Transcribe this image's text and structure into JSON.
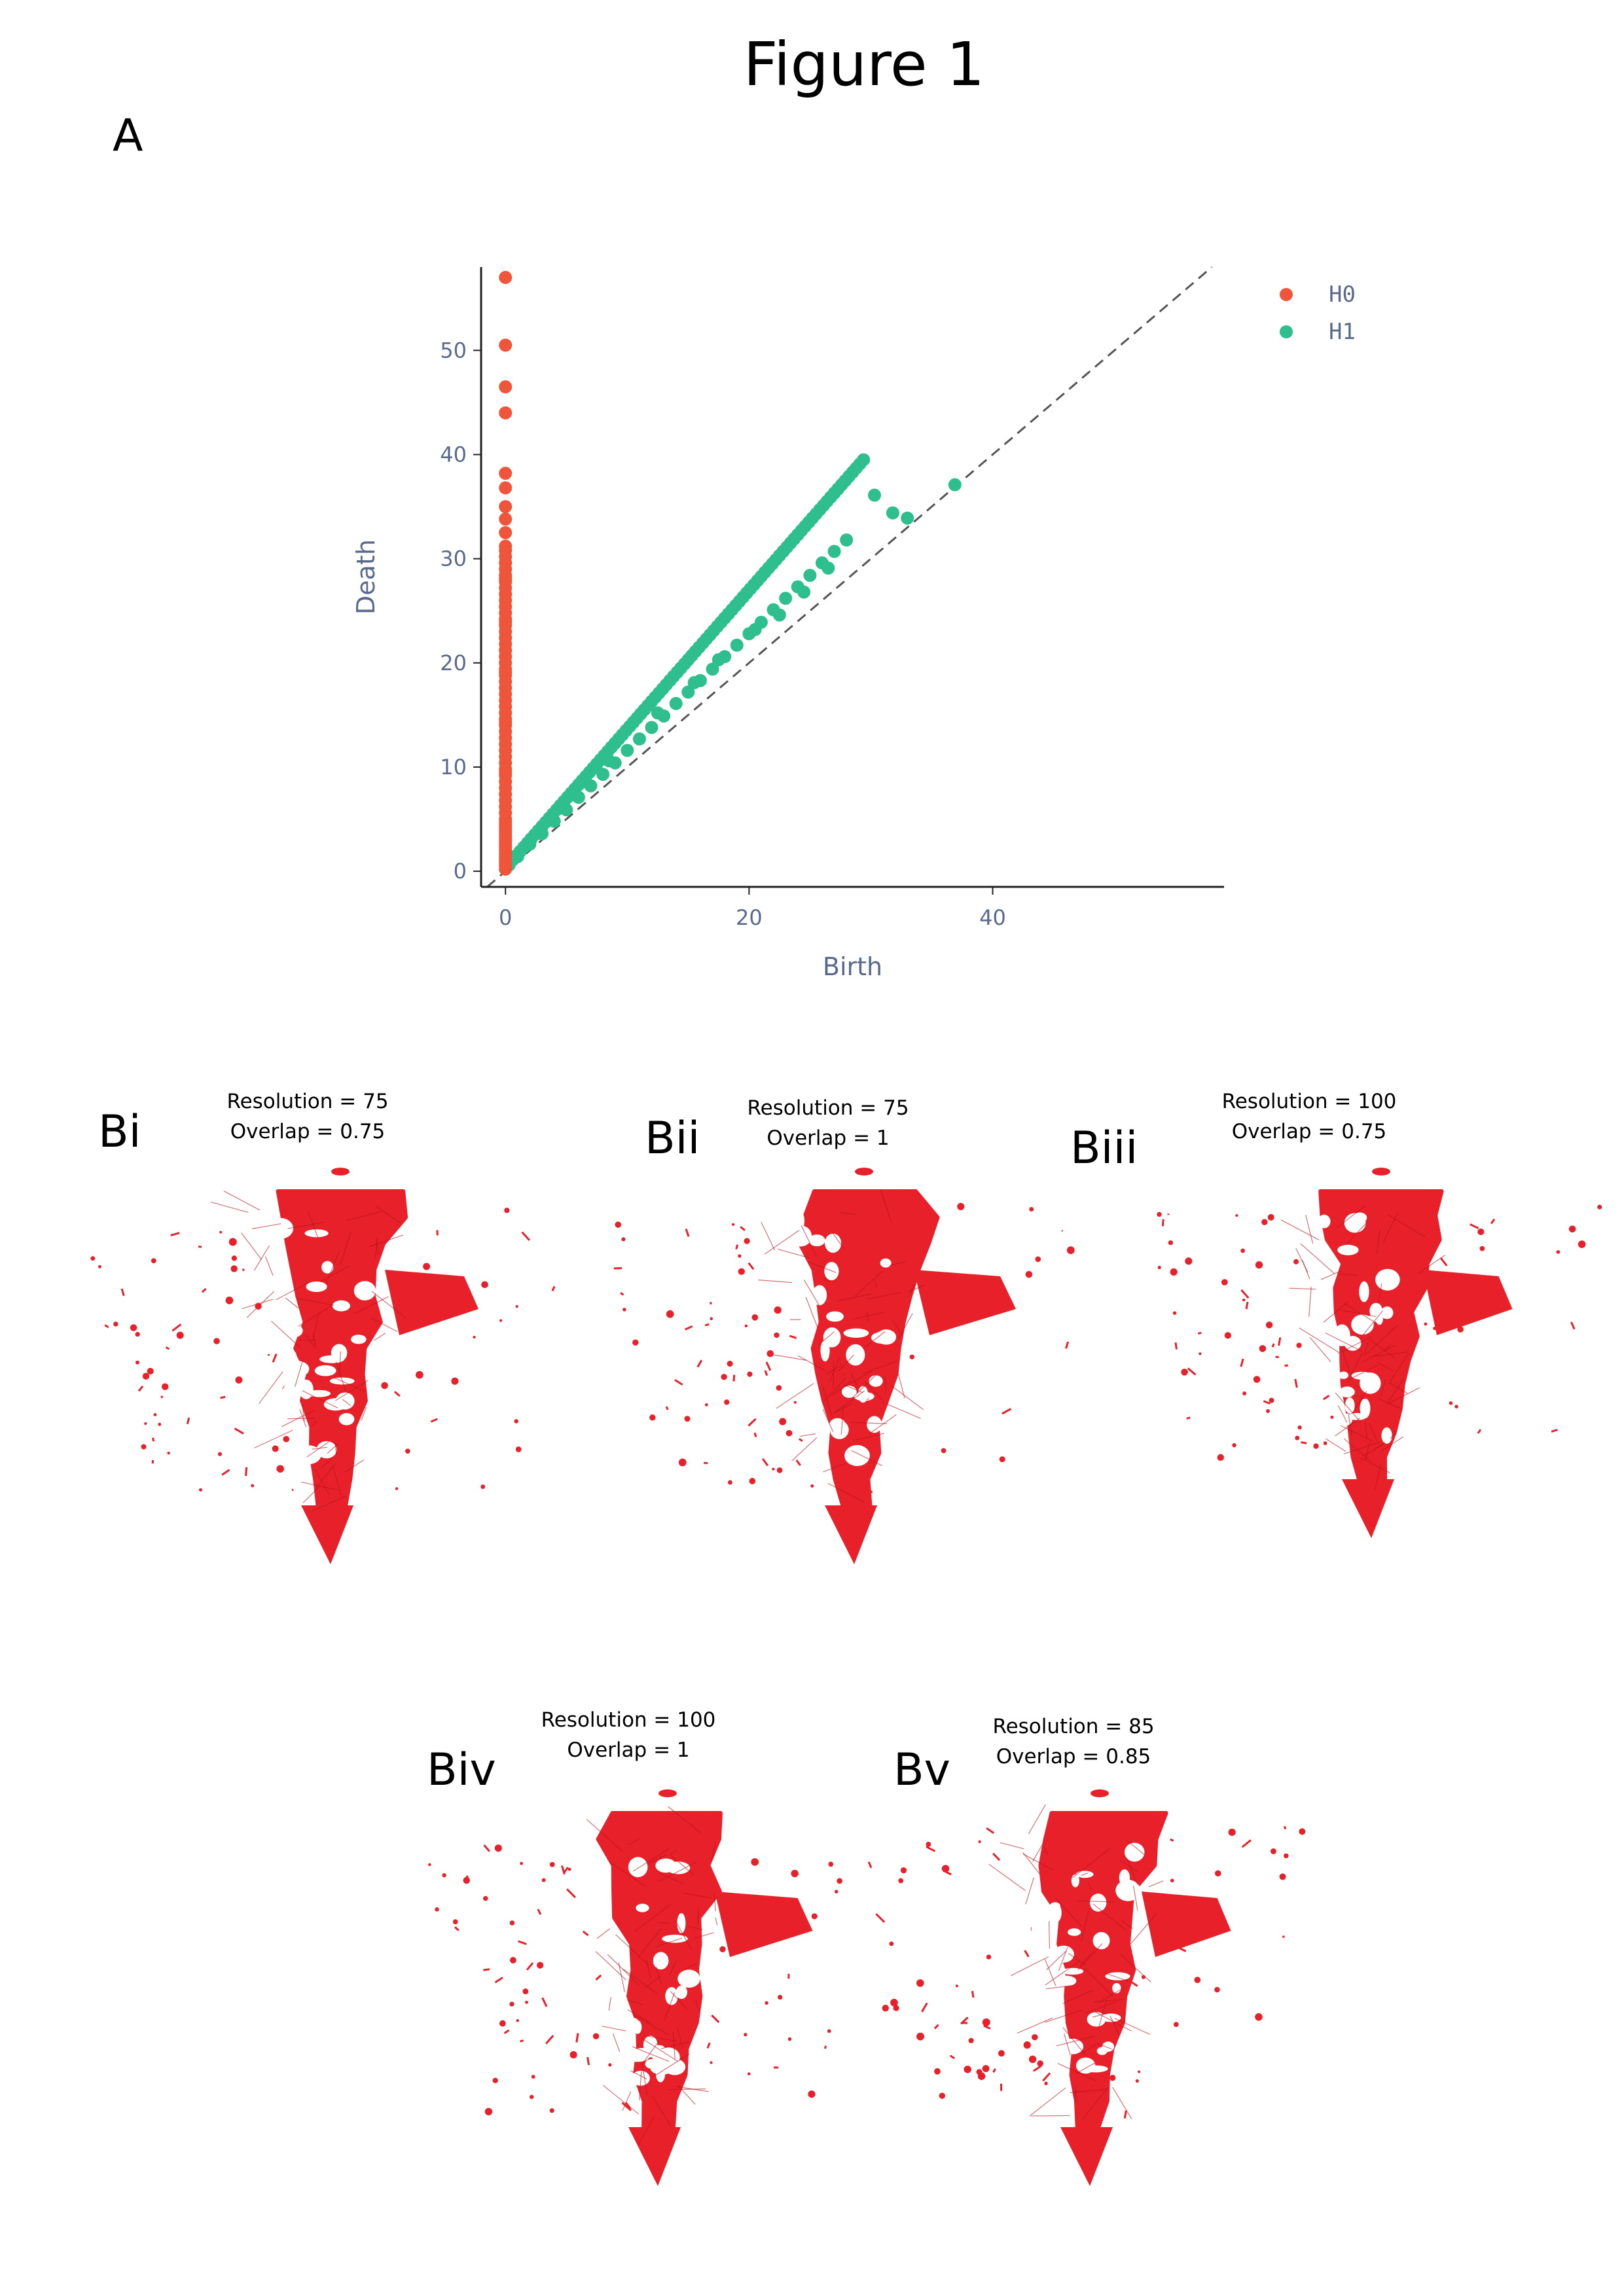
{
  "figure": {
    "title": "Figure 1",
    "panel_a_label": "A",
    "panels_b": [
      {
        "label": "Bi",
        "resolution_text": "Resolution = 75",
        "overlap_text": "Overlap = 0.75",
        "color": "#e8202a"
      },
      {
        "label": "Bii",
        "resolution_text": "Resolution = 75",
        "overlap_text": "Overlap = 1",
        "color": "#e8202a"
      },
      {
        "label": "Biii",
        "resolution_text": "Resolution = 100",
        "overlap_text": "Overlap = 0.75",
        "color": "#e8202a"
      },
      {
        "label": "Biv",
        "resolution_text": "Resolution = 100",
        "overlap_text": "Overlap = 1",
        "color": "#e8202a"
      },
      {
        "label": "Bv",
        "resolution_text": "Resolution = 85",
        "overlap_text": "Overlap = 0.85",
        "color": "#e8202a"
      }
    ]
  },
  "chart_data": {
    "type": "scatter",
    "xlabel": "Birth",
    "ylabel": "Death",
    "xlim": [
      -2,
      59
    ],
    "ylim": [
      -1.5,
      58
    ],
    "x_ticks": [
      0,
      20,
      40
    ],
    "y_ticks": [
      0,
      10,
      20,
      30,
      40,
      50
    ],
    "grid": false,
    "diagonal_reference": true,
    "legend_position": "top-right",
    "axis_text_color": "#5a6a8c",
    "series": [
      {
        "name": "H0",
        "color": "#ef553b",
        "x": [
          0,
          0,
          0,
          0,
          0,
          0,
          0,
          0,
          0,
          0,
          0,
          0,
          0,
          0,
          0,
          0,
          0,
          0,
          0,
          0,
          0,
          0,
          0,
          0,
          0,
          0,
          0,
          0,
          0,
          0,
          0,
          0,
          0,
          0,
          0,
          0,
          0,
          0,
          0,
          0,
          0,
          0,
          0,
          0,
          0,
          0,
          0,
          0,
          0,
          0,
          0,
          0,
          0,
          0,
          0,
          0,
          0,
          0,
          0,
          0,
          0,
          0,
          0,
          0,
          0,
          0,
          0,
          0,
          0,
          0,
          0,
          0,
          0,
          0,
          0
        ],
        "y": [
          57,
          50.5,
          46.5,
          44,
          38.2,
          36.8,
          35,
          33.8,
          32.5,
          31.2,
          30.8,
          30.2,
          29.6,
          29,
          28.4,
          27.8,
          27.2,
          26.6,
          26,
          25.4,
          24.8,
          24.2,
          23.6,
          23,
          22.4,
          21.8,
          21.2,
          20.6,
          20,
          19.4,
          18.8,
          18.2,
          17.6,
          17,
          16.4,
          15.8,
          15.2,
          14.6,
          14,
          13.4,
          12.8,
          12.2,
          11.6,
          11,
          10.4,
          9.8,
          9.2,
          8.6,
          8,
          7.4,
          6.8,
          6.2,
          5.6,
          5,
          4.4,
          3.8,
          3.2,
          2.6,
          2,
          1.4,
          0.8,
          0.2,
          0.5,
          1.1,
          1.7,
          2.3,
          2.9,
          3.5,
          4.1,
          4.7,
          9.5,
          14.3,
          19.1,
          23.9,
          28.1
        ]
      },
      {
        "name": "H1",
        "color": "#2fbf8f",
        "x": [
          0.3,
          0.6,
          0.9,
          1.2,
          1.5,
          1.8,
          2.1,
          2.4,
          2.7,
          3,
          3.3,
          3.6,
          3.9,
          4.2,
          4.5,
          4.8,
          5.1,
          5.4,
          5.7,
          6,
          6.3,
          6.6,
          6.9,
          7.2,
          7.5,
          7.8,
          8.1,
          8.4,
          8.7,
          9,
          9.3,
          9.6,
          9.9,
          10.2,
          10.5,
          10.8,
          11.1,
          11.4,
          11.7,
          12,
          12.3,
          12.6,
          12.9,
          13.2,
          13.5,
          13.8,
          14.1,
          14.4,
          14.7,
          15,
          15.3,
          15.6,
          15.9,
          16.2,
          16.5,
          16.8,
          17.1,
          17.4,
          17.7,
          18,
          18.3,
          18.6,
          18.9,
          19.2,
          19.5,
          19.8,
          20.1,
          20.4,
          20.7,
          21,
          21.3,
          21.6,
          21.9,
          22.2,
          22.5,
          22.8,
          23.1,
          23.4,
          23.7,
          24,
          24.3,
          24.6,
          24.9,
          25.2,
          25.5,
          25.8,
          26.1,
          26.4,
          26.7,
          27,
          27.3,
          27.6,
          27.9,
          28.2,
          28.5,
          28.8,
          29.1,
          29.4,
          30.3,
          31.8,
          33,
          36.9,
          1,
          2,
          3,
          4,
          5,
          6,
          7,
          8,
          9,
          10,
          11,
          12,
          13,
          14,
          15,
          16,
          17,
          18,
          19,
          20,
          21,
          22,
          23,
          24,
          25,
          26,
          27,
          28,
          8.5,
          12.5,
          15.5,
          17.5,
          20.5,
          22.5,
          24.5,
          26.5
        ],
        "y": [
          0.6,
          1.1,
          1.5,
          1.9,
          2.3,
          2.7,
          3.1,
          3.5,
          3.9,
          4.3,
          4.7,
          5.1,
          5.5,
          5.9,
          6.3,
          6.7,
          7.1,
          7.5,
          7.9,
          8.3,
          8.7,
          9.1,
          9.5,
          9.9,
          10.3,
          10.7,
          11.1,
          11.5,
          11.9,
          12.3,
          12.7,
          13.1,
          13.5,
          13.9,
          14.3,
          14.7,
          15.1,
          15.5,
          15.9,
          16.3,
          16.7,
          17.1,
          17.5,
          17.9,
          18.3,
          18.7,
          19.1,
          19.5,
          19.9,
          20.3,
          20.7,
          21.1,
          21.5,
          21.9,
          22.3,
          22.7,
          23.1,
          23.5,
          23.9,
          24.3,
          24.7,
          25.1,
          25.5,
          25.9,
          26.3,
          26.7,
          27.1,
          27.5,
          27.9,
          28.3,
          28.7,
          29.1,
          29.5,
          29.9,
          30.3,
          30.7,
          31.1,
          31.5,
          31.9,
          32.3,
          32.7,
          33.1,
          33.5,
          33.9,
          34.3,
          34.7,
          35.1,
          35.5,
          35.9,
          36.3,
          36.7,
          37.1,
          37.5,
          37.9,
          38.3,
          38.7,
          39.1,
          39.5,
          36.1,
          34.4,
          33.9,
          37.1,
          1.4,
          2.6,
          3.6,
          4.8,
          5.9,
          7.1,
          8.2,
          9.3,
          10.4,
          11.6,
          12.7,
          13.8,
          14.9,
          16.1,
          17.2,
          18.3,
          19.4,
          20.6,
          21.7,
          22.8,
          23.9,
          25.1,
          26.2,
          27.3,
          28.4,
          29.6,
          30.7,
          31.8,
          10.6,
          15.2,
          18.1,
          20.3,
          23.2,
          24.6,
          26.8,
          29.1
        ]
      }
    ]
  }
}
